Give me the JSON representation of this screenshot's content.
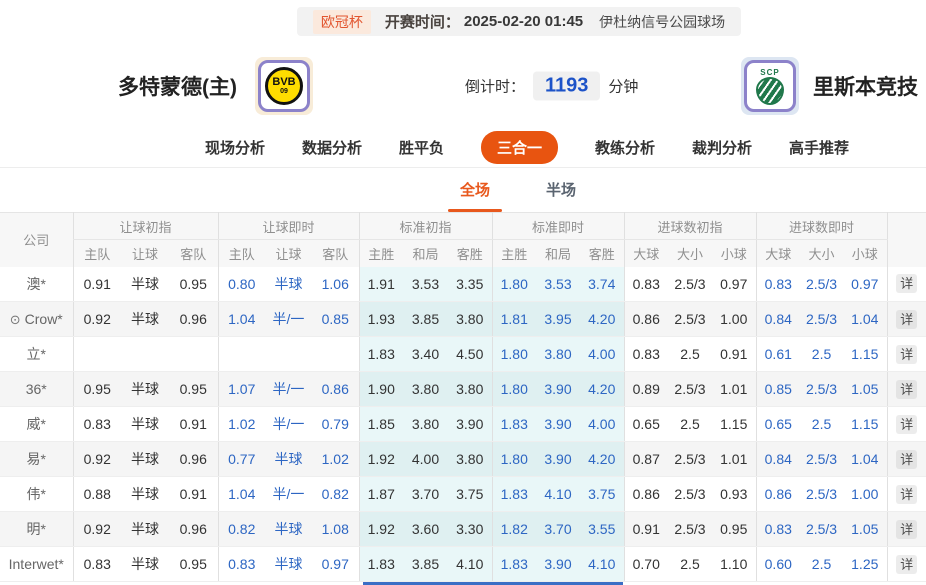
{
  "topbar": {
    "league": "欧冠杯",
    "kickoff_label": "开赛时间：",
    "kickoff_time": "2025-02-20 01:45",
    "venue": "伊杜纳信号公园球场"
  },
  "match": {
    "home_name": "多特蒙德(主)",
    "away_name": "里斯本竞技",
    "home_logo_text": "BVB",
    "home_logo_sub": "09",
    "away_logo_text": "SCP",
    "countdown_label": "倒计时：",
    "countdown_value": "1193",
    "countdown_unit": "分钟"
  },
  "tabs": {
    "items": [
      {
        "label": "现场分析",
        "active": false
      },
      {
        "label": "数据分析",
        "active": false
      },
      {
        "label": "胜平负",
        "active": false
      },
      {
        "label": "三合一",
        "active": true
      },
      {
        "label": "教练分析",
        "active": false
      },
      {
        "label": "裁判分析",
        "active": false
      },
      {
        "label": "高手推荐",
        "active": false
      }
    ]
  },
  "subtabs": {
    "items": [
      {
        "label": "全场",
        "active": true
      },
      {
        "label": "半场",
        "active": false
      }
    ]
  },
  "colors": {
    "accent_orange": "#e85410",
    "live_blue": "#2d66c3",
    "cyan_col_bg": "#e9f7f8",
    "countdown_blue": "#1d53c8"
  },
  "table": {
    "company_header": "公司",
    "detail_label": "详",
    "groups": [
      {
        "label": "让球初指",
        "cols": [
          "主队",
          "让球",
          "客队"
        ]
      },
      {
        "label": "让球即时",
        "cols": [
          "主队",
          "让球",
          "客队"
        ]
      },
      {
        "label": "标准初指",
        "cols": [
          "主胜",
          "和局",
          "客胜"
        ]
      },
      {
        "label": "标准即时",
        "cols": [
          "主胜",
          "和局",
          "客胜"
        ]
      },
      {
        "label": "进球数初指",
        "cols": [
          "大球",
          "大小",
          "小球"
        ]
      },
      {
        "label": "进球数即时",
        "cols": [
          "大球",
          "大小",
          "小球"
        ]
      }
    ],
    "rows": [
      {
        "company": "澳*",
        "icon": false,
        "values": [
          "0.91",
          "半球",
          "0.95",
          "0.80",
          "半球",
          "1.06",
          "1.91",
          "3.53",
          "3.35",
          "1.80",
          "3.53",
          "3.74",
          "0.83",
          "2.5/3",
          "0.97",
          "0.83",
          "2.5/3",
          "0.97"
        ]
      },
      {
        "company": "Crow*",
        "icon": true,
        "values": [
          "0.92",
          "半球",
          "0.96",
          "1.04",
          "半/一",
          "0.85",
          "1.93",
          "3.85",
          "3.80",
          "1.81",
          "3.95",
          "4.20",
          "0.86",
          "2.5/3",
          "1.00",
          "0.84",
          "2.5/3",
          "1.04"
        ]
      },
      {
        "company": "立*",
        "icon": false,
        "values": [
          "",
          "",
          "",
          "",
          "",
          "",
          "1.83",
          "3.40",
          "4.50",
          "1.80",
          "3.80",
          "4.00",
          "0.83",
          "2.5",
          "0.91",
          "0.61",
          "2.5",
          "1.15"
        ]
      },
      {
        "company": "36*",
        "icon": false,
        "values": [
          "0.95",
          "半球",
          "0.95",
          "1.07",
          "半/一",
          "0.86",
          "1.90",
          "3.80",
          "3.80",
          "1.80",
          "3.90",
          "4.20",
          "0.89",
          "2.5/3",
          "1.01",
          "0.85",
          "2.5/3",
          "1.05"
        ]
      },
      {
        "company": "威*",
        "icon": false,
        "values": [
          "0.83",
          "半球",
          "0.91",
          "1.02",
          "半/一",
          "0.79",
          "1.85",
          "3.80",
          "3.90",
          "1.83",
          "3.90",
          "4.00",
          "0.65",
          "2.5",
          "1.15",
          "0.65",
          "2.5",
          "1.15"
        ]
      },
      {
        "company": "易*",
        "icon": false,
        "values": [
          "0.92",
          "半球",
          "0.96",
          "0.77",
          "半球",
          "1.02",
          "1.92",
          "4.00",
          "3.80",
          "1.80",
          "3.90",
          "4.20",
          "0.87",
          "2.5/3",
          "1.01",
          "0.84",
          "2.5/3",
          "1.04"
        ]
      },
      {
        "company": "伟*",
        "icon": false,
        "values": [
          "0.88",
          "半球",
          "0.91",
          "1.04",
          "半/一",
          "0.82",
          "1.87",
          "3.70",
          "3.75",
          "1.83",
          "4.10",
          "3.75",
          "0.86",
          "2.5/3",
          "0.93",
          "0.86",
          "2.5/3",
          "1.00"
        ]
      },
      {
        "company": "明*",
        "icon": false,
        "values": [
          "0.92",
          "半球",
          "0.96",
          "0.82",
          "半球",
          "1.08",
          "1.92",
          "3.60",
          "3.30",
          "1.82",
          "3.70",
          "3.55",
          "0.91",
          "2.5/3",
          "0.95",
          "0.83",
          "2.5/3",
          "1.05"
        ]
      },
      {
        "company": "Interwet*",
        "icon": false,
        "values": [
          "0.83",
          "半球",
          "0.95",
          "0.83",
          "半球",
          "0.97",
          "1.83",
          "3.85",
          "4.10",
          "1.83",
          "3.90",
          "4.10",
          "0.70",
          "2.5",
          "1.10",
          "0.60",
          "2.5",
          "1.25"
        ]
      }
    ]
  }
}
